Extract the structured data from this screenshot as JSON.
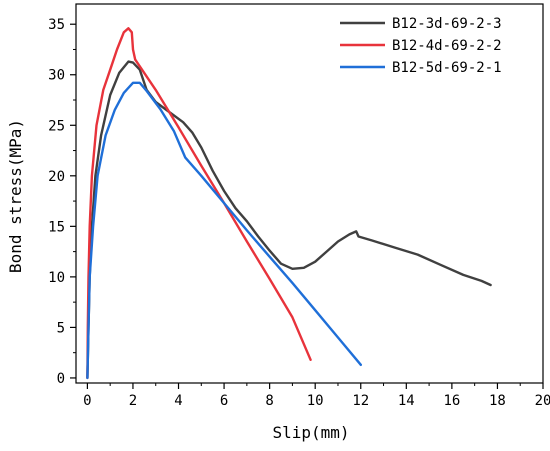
{
  "chart_data": {
    "type": "line",
    "xlabel": "Slip(mm)",
    "ylabel": "Bond stress(MPa)",
    "xlim": [
      -0.5,
      20
    ],
    "ylim": [
      -0.5,
      37
    ],
    "xticks": [
      "0",
      "2",
      "4",
      "6",
      "8",
      "10",
      "12",
      "14",
      "16",
      "18",
      "20"
    ],
    "yticks": [
      "0",
      "5",
      "10",
      "15",
      "20",
      "25",
      "30",
      "35"
    ],
    "legend_position": "top-right",
    "grid": false,
    "series": [
      {
        "name": "B12-3d-69-2-3",
        "color": "#404040",
        "points": [
          [
            0,
            0
          ],
          [
            0.05,
            5
          ],
          [
            0.1,
            10
          ],
          [
            0.2,
            15
          ],
          [
            0.35,
            20
          ],
          [
            0.6,
            24
          ],
          [
            1,
            28
          ],
          [
            1.4,
            30.2
          ],
          [
            1.8,
            31.3
          ],
          [
            2.0,
            31.2
          ],
          [
            2.3,
            30.5
          ],
          [
            2.6,
            28.5
          ],
          [
            3.0,
            27.3
          ],
          [
            3.6,
            26.3
          ],
          [
            4.2,
            25.3
          ],
          [
            4.6,
            24.3
          ],
          [
            5.0,
            22.8
          ],
          [
            5.5,
            20.5
          ],
          [
            6.0,
            18.5
          ],
          [
            6.5,
            16.8
          ],
          [
            7.0,
            15.5
          ],
          [
            7.5,
            14.0
          ],
          [
            8.0,
            12.6
          ],
          [
            8.5,
            11.3
          ],
          [
            9.0,
            10.8
          ],
          [
            9.5,
            10.9
          ],
          [
            10.0,
            11.5
          ],
          [
            10.5,
            12.5
          ],
          [
            11.0,
            13.5
          ],
          [
            11.5,
            14.2
          ],
          [
            11.8,
            14.5
          ],
          [
            11.9,
            14.0
          ],
          [
            12.5,
            13.6
          ],
          [
            13.5,
            12.9
          ],
          [
            14.5,
            12.2
          ],
          [
            15.5,
            11.2
          ],
          [
            16.5,
            10.2
          ],
          [
            17.3,
            9.6
          ],
          [
            17.7,
            9.2
          ]
        ]
      },
      {
        "name": "B12-4d-69-2-2",
        "color": "#e8333b",
        "points": [
          [
            0,
            0
          ],
          [
            0.02,
            5
          ],
          [
            0.05,
            10
          ],
          [
            0.1,
            15
          ],
          [
            0.2,
            20
          ],
          [
            0.4,
            25
          ],
          [
            0.7,
            28.5
          ],
          [
            1.0,
            30.5
          ],
          [
            1.3,
            32.5
          ],
          [
            1.6,
            34.2
          ],
          [
            1.8,
            34.6
          ],
          [
            1.95,
            34.2
          ],
          [
            2.0,
            32.5
          ],
          [
            2.1,
            31.5
          ],
          [
            3.0,
            28.5
          ],
          [
            4.0,
            24.8
          ],
          [
            5.0,
            21.0
          ],
          [
            6.0,
            17.3
          ],
          [
            7.0,
            13.5
          ],
          [
            8.0,
            9.8
          ],
          [
            9.0,
            6.0
          ],
          [
            9.8,
            1.8
          ]
        ]
      },
      {
        "name": "B12-5d-69-2-1",
        "color": "#1f6fd8",
        "points": [
          [
            0,
            0
          ],
          [
            0.05,
            5
          ],
          [
            0.1,
            10
          ],
          [
            0.25,
            15
          ],
          [
            0.45,
            20
          ],
          [
            0.8,
            24
          ],
          [
            1.2,
            26.5
          ],
          [
            1.6,
            28.2
          ],
          [
            2.0,
            29.2
          ],
          [
            2.3,
            29.2
          ],
          [
            2.6,
            28.4
          ],
          [
            3.2,
            26.6
          ],
          [
            3.8,
            24.4
          ],
          [
            4.3,
            21.8
          ],
          [
            5.0,
            20.0
          ],
          [
            6.0,
            17.3
          ],
          [
            7.0,
            14.6
          ],
          [
            8.0,
            12.0
          ],
          [
            9.0,
            9.4
          ],
          [
            10.0,
            6.7
          ],
          [
            11.0,
            4.0
          ],
          [
            12.0,
            1.3
          ]
        ]
      }
    ]
  }
}
